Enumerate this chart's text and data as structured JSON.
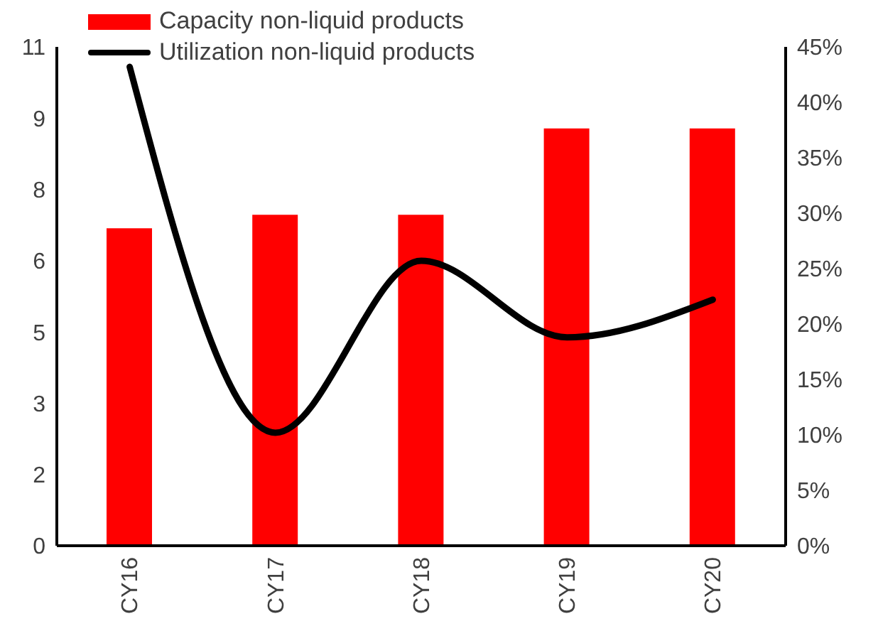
{
  "chart_data": {
    "type": "bar",
    "categories": [
      "CY16",
      "CY17",
      "CY18",
      "CY19",
      "CY20"
    ],
    "series": [
      {
        "name": "Capacity non-liquid products",
        "color": "#ff0000",
        "values": [
          7.0,
          7.3,
          7.3,
          9.2,
          9.2
        ]
      },
      {
        "name": "Utilization non-liquid products",
        "type": "line",
        "axis": "y2",
        "color": "#000000",
        "values": [
          43.2,
          10.2,
          25.7,
          18.8,
          22.2
        ]
      }
    ],
    "ylim": [
      0,
      11
    ],
    "yticks": [
      {
        "value": 0,
        "label": "0"
      },
      {
        "value": 1.5714,
        "label": "2"
      },
      {
        "value": 3.1429,
        "label": "3"
      },
      {
        "value": 4.7143,
        "label": "5"
      },
      {
        "value": 6.2857,
        "label": "6"
      },
      {
        "value": 7.8571,
        "label": "8"
      },
      {
        "value": 9.4286,
        "label": "9"
      },
      {
        "value": 11,
        "label": "11"
      }
    ],
    "y2lim": [
      0,
      45
    ],
    "y2ticks": [
      {
        "value": 0,
        "label": "0%"
      },
      {
        "value": 5,
        "label": "5%"
      },
      {
        "value": 10,
        "label": "10%"
      },
      {
        "value": 15,
        "label": "15%"
      },
      {
        "value": 20,
        "label": "20%"
      },
      {
        "value": 25,
        "label": "25%"
      },
      {
        "value": 30,
        "label": "30%"
      },
      {
        "value": 35,
        "label": "35%"
      },
      {
        "value": 40,
        "label": "40%"
      },
      {
        "value": 45,
        "label": "45%"
      }
    ],
    "legend": "top left",
    "grid": false,
    "marker": "none"
  }
}
